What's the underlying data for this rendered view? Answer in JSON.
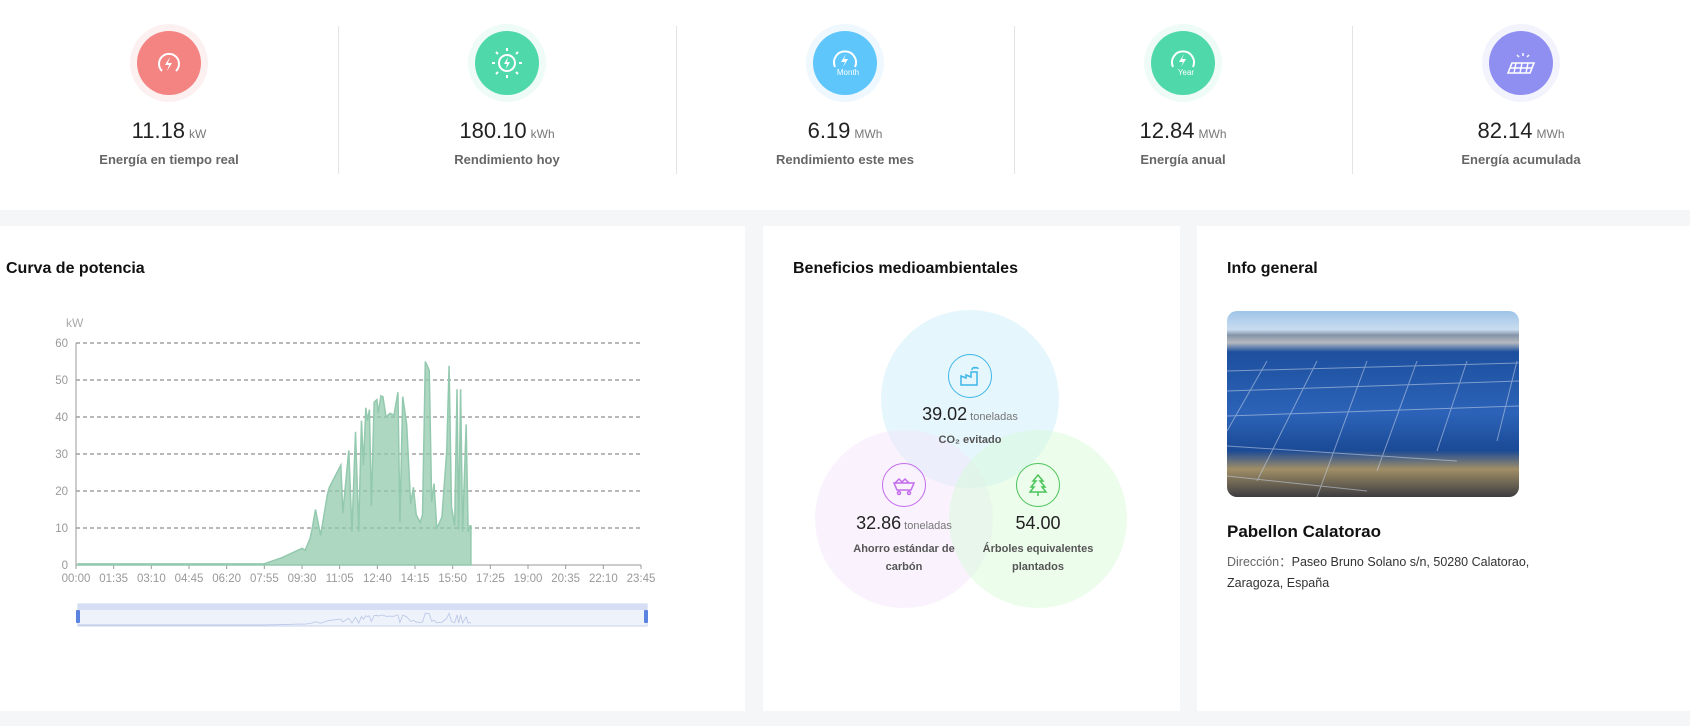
{
  "stats": [
    {
      "value": "11.18",
      "unit": "kW",
      "label": "Energía en tiempo real",
      "icon": "power-gauge-icon",
      "color": "#f38482",
      "halo": "#fdf0f0"
    },
    {
      "value": "180.10",
      "unit": "kWh",
      "label": "Rendimiento hoy",
      "icon": "sun-bolt-icon",
      "color": "#4fd8aa",
      "halo": "#eefbf6"
    },
    {
      "value": "6.19",
      "unit": "MWh",
      "label": "Rendimiento este mes",
      "icon": "month-bolt-icon",
      "icon_text": "Month",
      "color": "#5ec6fb",
      "halo": "#eef8fe"
    },
    {
      "value": "12.84",
      "unit": "MWh",
      "label": "Energía anual",
      "icon": "year-bolt-icon",
      "icon_text": "Year",
      "color": "#4fd8aa",
      "halo": "#eefbf6"
    },
    {
      "value": "82.14",
      "unit": "MWh",
      "label": "Energía acumulada",
      "icon": "solar-panel-icon",
      "color": "#8f8ff2",
      "halo": "#f3f3fd"
    }
  ],
  "power_curve": {
    "title": "Curva de potencia"
  },
  "chart_data": {
    "type": "area",
    "ylabel": "kW",
    "ylim": [
      0,
      60
    ],
    "yticks": [
      0,
      10,
      20,
      30,
      40,
      50,
      60
    ],
    "xticks": [
      "00:00",
      "01:35",
      "03:10",
      "04:45",
      "06:20",
      "07:55",
      "09:30",
      "11:05",
      "12:40",
      "14:15",
      "15:50",
      "17:25",
      "19:00",
      "20:35",
      "22:10",
      "23:45"
    ],
    "xlim": [
      "00:00",
      "23:45"
    ],
    "grid": true,
    "color": "#93c9ae",
    "points": [
      [
        "00:05",
        0.3
      ],
      [
        "07:55",
        0.3
      ],
      [
        "08:40",
        2
      ],
      [
        "09:30",
        4.5
      ],
      [
        "09:38",
        4
      ],
      [
        "09:50",
        7
      ],
      [
        "09:56",
        10
      ],
      [
        "10:04",
        15
      ],
      [
        "10:17",
        8
      ],
      [
        "10:34",
        19
      ],
      [
        "10:39",
        21
      ],
      [
        "11:08",
        27
      ],
      [
        "11:13",
        14
      ],
      [
        "11:28",
        31
      ],
      [
        "11:36",
        9
      ],
      [
        "11:45",
        36
      ],
      [
        "11:53",
        9
      ],
      [
        "12:00",
        39
      ],
      [
        "12:05",
        27
      ],
      [
        "12:11",
        42.5
      ],
      [
        "12:15",
        39
      ],
      [
        "12:20",
        42
      ],
      [
        "12:25",
        16
      ],
      [
        "12:32",
        44
      ],
      [
        "12:39",
        44.7
      ],
      [
        "12:42",
        41
      ],
      [
        "12:49",
        45.7
      ],
      [
        "12:54",
        45.5
      ],
      [
        "13:02",
        40
      ],
      [
        "13:12",
        41
      ],
      [
        "13:22",
        40.5
      ],
      [
        "13:32",
        46.7
      ],
      [
        "13:37",
        11.5
      ],
      [
        "13:44",
        45.5
      ],
      [
        "13:54",
        38
      ],
      [
        "14:04",
        16.5
      ],
      [
        "14:11",
        21
      ],
      [
        "14:18",
        13.6
      ],
      [
        "14:28",
        11.5
      ],
      [
        "14:34",
        13.6
      ],
      [
        "14:41",
        55
      ],
      [
        "14:51",
        52.6
      ],
      [
        "14:57",
        17
      ],
      [
        "15:03",
        22
      ],
      [
        "15:10",
        9.8
      ],
      [
        "15:23",
        13
      ],
      [
        "15:35",
        30.8
      ],
      [
        "15:41",
        53.8
      ],
      [
        "15:47",
        15.7
      ],
      [
        "15:55",
        10.6
      ],
      [
        "16:01",
        47.5
      ],
      [
        "16:05",
        9.5
      ],
      [
        "16:10",
        47.5
      ],
      [
        "16:15",
        9
      ],
      [
        "16:24",
        38
      ],
      [
        "16:29",
        9
      ],
      [
        "16:34",
        10.6
      ],
      [
        "16:36",
        10.6
      ]
    ]
  },
  "environment": {
    "title": "Beneficios medioambientales",
    "co2": {
      "value": "39.02",
      "unit": "toneladas",
      "label": "CO₂ evitado",
      "icon": "factory-icon",
      "color": "#3fb6e8"
    },
    "coal": {
      "value": "32.86",
      "unit": "toneladas",
      "label": "Ahorro estándar de carbón",
      "icon": "coal-cart-icon",
      "color": "#c36bec"
    },
    "trees": {
      "value": "54.00",
      "label": "Árboles equivalentes plantados",
      "icon": "tree-icon",
      "color": "#4cc45a"
    }
  },
  "info": {
    "title": "Info general",
    "name": "Pabellon Calatorao",
    "address_label": "Dirección：",
    "address": "Paseo Bruno Solano s/n, 50280 Calatorao, Zaragoza, España"
  }
}
